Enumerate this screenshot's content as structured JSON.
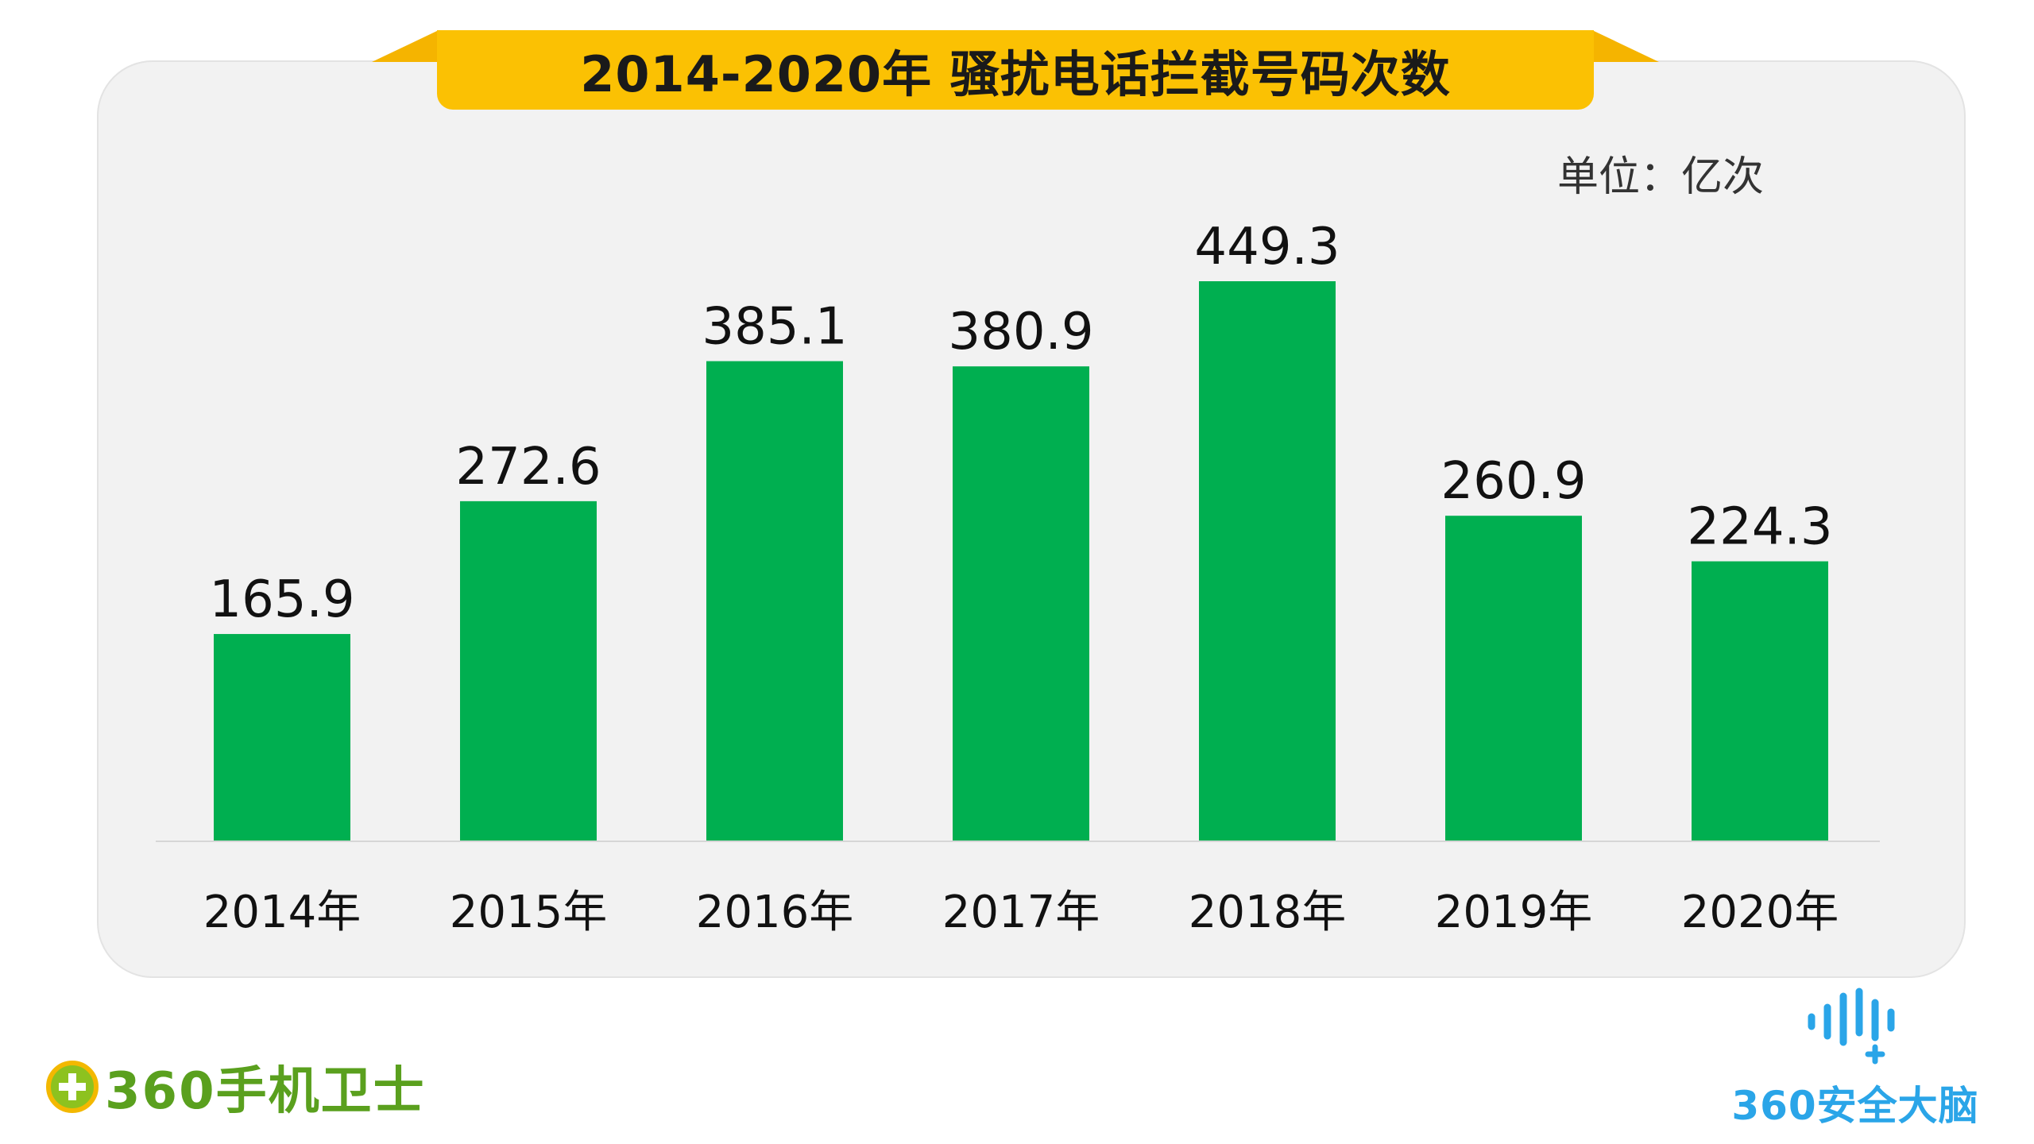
{
  "chart_data": {
    "type": "bar",
    "title": "2014-2020年 骚扰电话拦截号码次数",
    "unit_label": "单位：亿次",
    "categories": [
      "2014年",
      "2015年",
      "2016年",
      "2017年",
      "2018年",
      "2019年",
      "2020年"
    ],
    "values": [
      165.9,
      272.6,
      385.1,
      380.9,
      449.3,
      260.9,
      224.3
    ],
    "value_labels": [
      "165.9",
      "272.6",
      "385.1",
      "380.9",
      "449.3",
      "260.9",
      "224.3"
    ],
    "ylim": [
      0,
      449.3
    ],
    "grid": false,
    "legend": "none",
    "bar_color": "#00af50"
  },
  "branding": {
    "left_logo_text": "360手机卫士",
    "right_logo_text": "360安全大脑",
    "left_logo_icon": "plus-circle-icon",
    "right_logo_icon": "sound-wave-icon"
  },
  "colors": {
    "title_bar": "#fbc103",
    "panel": "#f2f2f2",
    "left_logo": "#5aa01e",
    "right_logo": "#2aa5e8"
  }
}
